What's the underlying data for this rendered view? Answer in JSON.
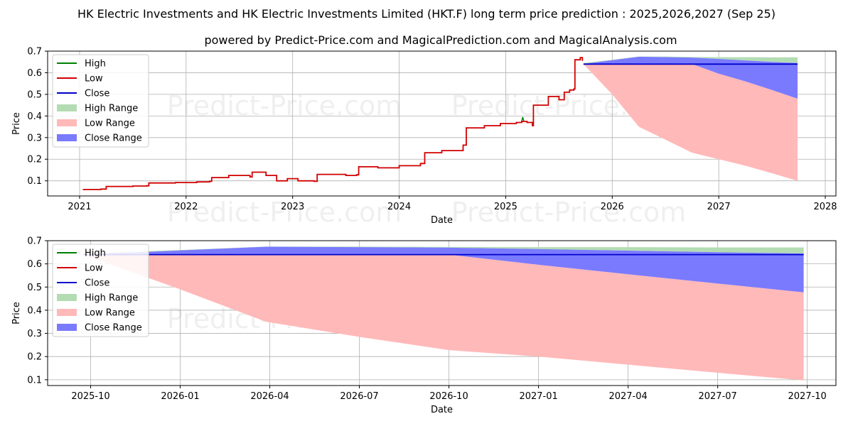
{
  "title": "HK Electric Investments and HK Electric Investments Limited (HKT.F) long term price prediction : 2025,2026,2027 (Sep 25)",
  "subtitle": "powered by Predict-Price.com and MagicalPrediction.com and MagicalAnalysis.com",
  "watermark": "Predict-Price.com",
  "colors": {
    "high": "#008000",
    "low": "#d00000",
    "close": "#0000cc",
    "high_range": "#b3dcb3",
    "low_range": "#ffb9b9",
    "close_range": "#7a7aff"
  },
  "legend": {
    "high": "High",
    "low": "Low",
    "close": "Close",
    "high_range": "High Range",
    "low_range": "Low Range",
    "close_range": "Close Range"
  },
  "chart_data": [
    {
      "type": "line",
      "xlabel": "Date",
      "ylabel": "Price",
      "xlim": [
        2020.7,
        2028.1
      ],
      "ylim": [
        0.03,
        0.7
      ],
      "yticks": [
        0.1,
        0.2,
        0.3,
        0.4,
        0.5,
        0.6,
        0.7
      ],
      "ytick_labels": [
        "0.1",
        "0.2",
        "0.3",
        "0.4",
        "0.5",
        "0.6",
        "0.7"
      ],
      "xticks": [
        2021,
        2022,
        2023,
        2024,
        2025,
        2026,
        2027,
        2028
      ],
      "xtick_labels": [
        "2021",
        "2022",
        "2023",
        "2024",
        "2025",
        "2026",
        "2027",
        "2028"
      ],
      "history": {
        "x": [
          2021.03,
          2021.2,
          2021.25,
          2021.5,
          2021.63,
          2021.65,
          2021.9,
          2022.1,
          2022.22,
          2022.24,
          2022.4,
          2022.6,
          2022.62,
          2022.75,
          2022.85,
          2022.95,
          2023.05,
          2023.2,
          2023.23,
          2023.5,
          2023.6,
          2023.62,
          2023.8,
          2024.0,
          2024.2,
          2024.24,
          2024.4,
          2024.6,
          2024.63,
          2024.8,
          2024.95,
          2025.1,
          2025.15,
          2025.2,
          2025.25,
          2025.26,
          2025.4,
          2025.5,
          2025.55,
          2025.6,
          2025.64,
          2025.65,
          2025.7,
          2025.72
        ],
        "low": [
          0.06,
          0.062,
          0.074,
          0.076,
          0.077,
          0.09,
          0.092,
          0.095,
          0.098,
          0.115,
          0.125,
          0.118,
          0.14,
          0.125,
          0.1,
          0.11,
          0.1,
          0.098,
          0.13,
          0.125,
          0.128,
          0.165,
          0.16,
          0.17,
          0.18,
          0.23,
          0.24,
          0.265,
          0.345,
          0.355,
          0.365,
          0.37,
          0.375,
          0.37,
          0.355,
          0.45,
          0.49,
          0.475,
          0.51,
          0.52,
          0.525,
          0.66,
          0.67,
          0.655
        ],
        "high_spike": {
          "x": 2025.16,
          "value": 0.395
        }
      },
      "forecast": {
        "x": [
          2025.73,
          2026.0,
          2026.25,
          2026.5,
          2026.75,
          2027.0,
          2027.25,
          2027.5,
          2027.74
        ],
        "high_range_top": [
          0.645,
          0.66,
          0.675,
          0.675,
          0.673,
          0.672,
          0.672,
          0.671,
          0.671
        ],
        "close_range_top": [
          0.641,
          0.658,
          0.674,
          0.672,
          0.67,
          0.664,
          0.657,
          0.65,
          0.645
        ],
        "close_range_bottom": [
          0.641,
          0.641,
          0.641,
          0.641,
          0.64,
          0.596,
          0.56,
          0.52,
          0.48
        ],
        "low_range_bottom": [
          0.64,
          0.5,
          0.35,
          0.29,
          0.23,
          0.2,
          0.17,
          0.135,
          0.1
        ],
        "close": [
          0.64,
          0.64,
          0.64,
          0.64,
          0.64,
          0.64,
          0.64,
          0.64,
          0.64
        ]
      }
    },
    {
      "type": "line",
      "xlabel": "Date",
      "ylabel": "Price",
      "xlim": [
        2025.63,
        2027.83
      ],
      "ylim": [
        0.075,
        0.7
      ],
      "yticks": [
        0.1,
        0.2,
        0.3,
        0.4,
        0.5,
        0.6,
        0.7
      ],
      "ytick_labels": [
        "0.1",
        "0.2",
        "0.3",
        "0.4",
        "0.5",
        "0.6",
        "0.7"
      ],
      "xticks": [
        2025.75,
        2026.0,
        2026.25,
        2026.5,
        2026.75,
        2027.0,
        2027.25,
        2027.5,
        2027.75
      ],
      "xtick_labels": [
        "2025-10",
        "2026-01",
        "2026-04",
        "2026-07",
        "2026-10",
        "2027-01",
        "2027-04",
        "2027-07",
        "2027-10"
      ],
      "forecast": {
        "x": [
          2025.73,
          2026.0,
          2026.24,
          2026.5,
          2026.75,
          2027.0,
          2027.25,
          2027.5,
          2027.74
        ],
        "high_range_top": [
          0.645,
          0.66,
          0.675,
          0.675,
          0.673,
          0.672,
          0.672,
          0.671,
          0.671
        ],
        "close_range_top": [
          0.641,
          0.658,
          0.674,
          0.672,
          0.67,
          0.664,
          0.657,
          0.65,
          0.645
        ],
        "close_range_bottom": [
          0.641,
          0.641,
          0.641,
          0.641,
          0.64,
          0.596,
          0.555,
          0.515,
          0.477
        ],
        "low_range_bottom": [
          0.64,
          0.49,
          0.35,
          0.285,
          0.228,
          0.2,
          0.165,
          0.13,
          0.097
        ],
        "close": [
          0.64,
          0.64,
          0.64,
          0.64,
          0.64,
          0.64,
          0.64,
          0.64,
          0.64
        ]
      }
    }
  ]
}
